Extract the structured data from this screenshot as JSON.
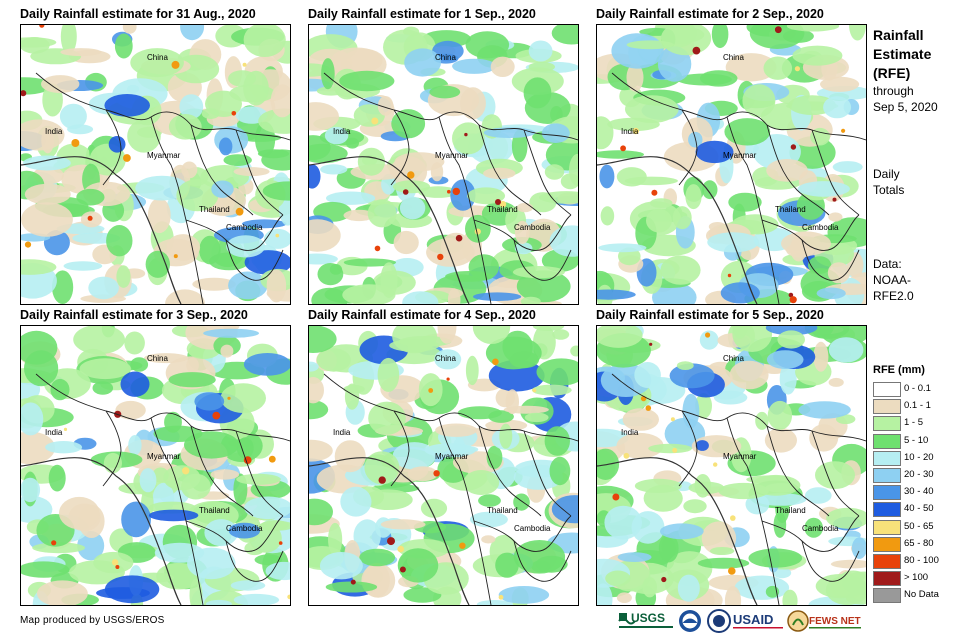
{
  "panels": [
    {
      "title": "Daily Rainfall estimate for 31 Aug., 2020",
      "seed": 11
    },
    {
      "title": "Daily Rainfall estimate for 1 Sep., 2020",
      "seed": 23
    },
    {
      "title": "Daily Rainfall estimate for 2 Sep., 2020",
      "seed": 37
    },
    {
      "title": "Daily Rainfall estimate for 3 Sep., 2020",
      "seed": 41
    },
    {
      "title": "Daily Rainfall estimate for 4 Sep., 2020",
      "seed": 53
    },
    {
      "title": "Daily Rainfall estimate for 5 Sep., 2020",
      "seed": 67
    }
  ],
  "places": {
    "china": "China",
    "india": "India",
    "myanmar": "Myanmar",
    "thailand": "Thailand",
    "cambodia": "Cambodia"
  },
  "side": {
    "title_line1": "Rainfall",
    "title_line2": "Estimate",
    "title_line3": "(RFE)",
    "through": "through",
    "through_date": "Sep 5, 2020",
    "totals_line1": "Daily",
    "totals_line2": "Totals",
    "data_line1": "Data:",
    "data_line2": "NOAA-",
    "data_line3": "RFE2.0"
  },
  "legend": {
    "title": "RFE (mm)",
    "items": [
      {
        "label": "0 - 0.1",
        "color": "#ffffff"
      },
      {
        "label": "0.1 - 1",
        "color": "#ecdcc0"
      },
      {
        "label": "1 - 5",
        "color": "#b6f2a2"
      },
      {
        "label": "5 - 10",
        "color": "#6fe070"
      },
      {
        "label": "10 - 20",
        "color": "#b6eef2"
      },
      {
        "label": "20 - 30",
        "color": "#8ed0f2"
      },
      {
        "label": "30 - 40",
        "color": "#4a95e8"
      },
      {
        "label": "40 - 50",
        "color": "#1e5ce0"
      },
      {
        "label": "50 - 65",
        "color": "#f8e27a"
      },
      {
        "label": "65 - 80",
        "color": "#f19a10"
      },
      {
        "label": "80 - 100",
        "color": "#e8420a"
      },
      {
        "label": "> 100",
        "color": "#a01a1a"
      },
      {
        "label": "No Data",
        "color": "#999999"
      }
    ]
  },
  "credit": "Map produced by USGS/EROS",
  "logos": {
    "usgs": "USGS",
    "noaa": "NOAA",
    "usaid": "USAID",
    "fewsnet": "FEWS NET"
  }
}
